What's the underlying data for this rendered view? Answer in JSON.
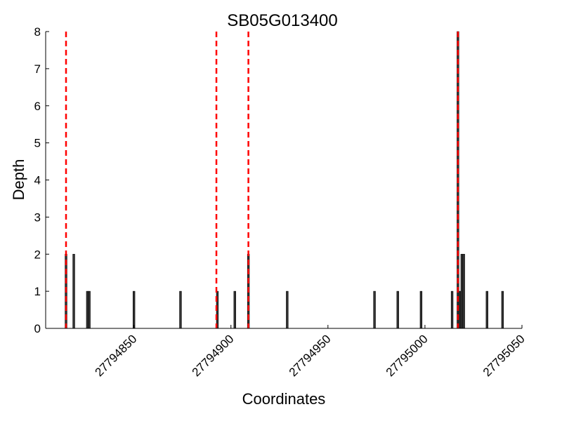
{
  "chart_data": {
    "type": "bar",
    "title": "SB05G013400",
    "xlabel": "Coordinates",
    "ylabel": "Depth",
    "xlim": [
      27794804.5,
      27795050
    ],
    "ylim": [
      0,
      8
    ],
    "xticks": [
      27794850,
      27794900,
      27794950,
      27795000,
      27795050
    ],
    "yticks": [
      0,
      1,
      2,
      3,
      4,
      5,
      6,
      7,
      8
    ],
    "grid": false,
    "bars": [
      {
        "x": 27794815,
        "y": 2
      },
      {
        "x": 27794819,
        "y": 2
      },
      {
        "x": 27794826,
        "y": 1
      },
      {
        "x": 27794827,
        "y": 1
      },
      {
        "x": 27794850,
        "y": 1
      },
      {
        "x": 27794874,
        "y": 1
      },
      {
        "x": 27794893,
        "y": 1
      },
      {
        "x": 27794902,
        "y": 1
      },
      {
        "x": 27794909,
        "y": 2
      },
      {
        "x": 27794929,
        "y": 1
      },
      {
        "x": 27794974,
        "y": 1
      },
      {
        "x": 27794986,
        "y": 1
      },
      {
        "x": 27794998,
        "y": 1
      },
      {
        "x": 27795014,
        "y": 1
      },
      {
        "x": 27795017,
        "y": 8
      },
      {
        "x": 27795018,
        "y": 1
      },
      {
        "x": 27795019,
        "y": 2
      },
      {
        "x": 27795020,
        "y": 2
      },
      {
        "x": 27795032,
        "y": 1
      },
      {
        "x": 27795040,
        "y": 1
      }
    ],
    "vlines": [
      27794815,
      27794892.5,
      27794909,
      27795017
    ],
    "colors": {
      "bar": "#333333",
      "vline": "#ff0000"
    }
  }
}
